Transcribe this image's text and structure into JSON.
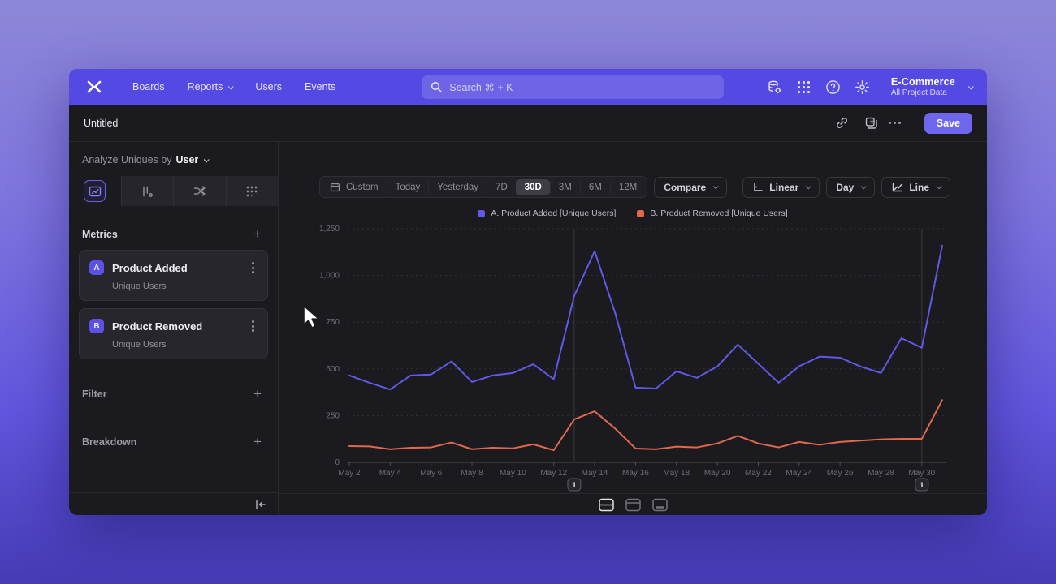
{
  "topnav": {
    "items": [
      {
        "label": "Boards"
      },
      {
        "label": "Reports"
      },
      {
        "label": "Users"
      },
      {
        "label": "Events"
      }
    ],
    "search": {
      "placeholder": "Search  ⌘ + K"
    },
    "project": {
      "name": "E-Commerce",
      "scope": "All Project Data"
    }
  },
  "reportbar": {
    "title": "Untitled",
    "save_label": "Save"
  },
  "sidebar": {
    "analyze_prefix": "Analyze Uniques by",
    "analyze_value": "User",
    "metrics_label": "Metrics",
    "filter_label": "Filter",
    "breakdown_label": "Breakdown",
    "metrics": [
      {
        "badge": "A",
        "name": "Product Added",
        "sub": "Unique Users"
      },
      {
        "badge": "B",
        "name": "Product Removed",
        "sub": "Unique Users"
      }
    ]
  },
  "toolbar": {
    "ranges": [
      "Custom",
      "Today",
      "Yesterday",
      "7D",
      "30D",
      "3M",
      "6M",
      "12M"
    ],
    "selected_range": "30D",
    "compare_label": "Compare",
    "scale_label": "Linear",
    "interval_label": "Day",
    "chart_type_label": "Line"
  },
  "colors": {
    "navbar": "#5449e2",
    "accent": "#6f66ee",
    "series_a": "#6158e6",
    "series_b": "#e0694c"
  },
  "chart_data": {
    "type": "line",
    "title": "",
    "x": [
      "May 2",
      "May 3",
      "May 4",
      "May 5",
      "May 6",
      "May 7",
      "May 8",
      "May 9",
      "May 10",
      "May 11",
      "May 12",
      "May 13",
      "May 14",
      "May 15",
      "May 16",
      "May 17",
      "May 18",
      "May 19",
      "May 20",
      "May 21",
      "May 22",
      "May 23",
      "May 24",
      "May 25",
      "May 26",
      "May 27",
      "May 28",
      "May 29",
      "May 30",
      "May 31"
    ],
    "xtick_every": 2,
    "ylim": [
      0,
      1250
    ],
    "ytick_step": 250,
    "ytick_labels": [
      "0",
      "250",
      "500",
      "750",
      "1,000",
      "1,250"
    ],
    "grid": "horizontal-dashed",
    "legend_position": "top-center",
    "series": [
      {
        "name": "A. Product Added [Unique Users]",
        "color": "#6158e6",
        "values": [
          465,
          425,
          390,
          465,
          470,
          540,
          430,
          465,
          478,
          525,
          445,
          890,
          1130,
          800,
          400,
          395,
          487,
          452,
          513,
          630,
          528,
          426,
          514,
          566,
          560,
          513,
          478,
          664,
          613,
          1160
        ]
      },
      {
        "name": "B. Product Removed [Unique Users]",
        "color": "#e0694c",
        "values": [
          87,
          85,
          70,
          78,
          80,
          106,
          70,
          78,
          75,
          96,
          65,
          230,
          273,
          181,
          74,
          70,
          84,
          80,
          101,
          142,
          101,
          80,
          109,
          94,
          109,
          116,
          123,
          126,
          126,
          333
        ]
      }
    ],
    "annotations": [
      {
        "x": "May 13",
        "index": 11,
        "label": "1"
      },
      {
        "x": "May 30",
        "index": 28,
        "label": "1"
      }
    ]
  }
}
